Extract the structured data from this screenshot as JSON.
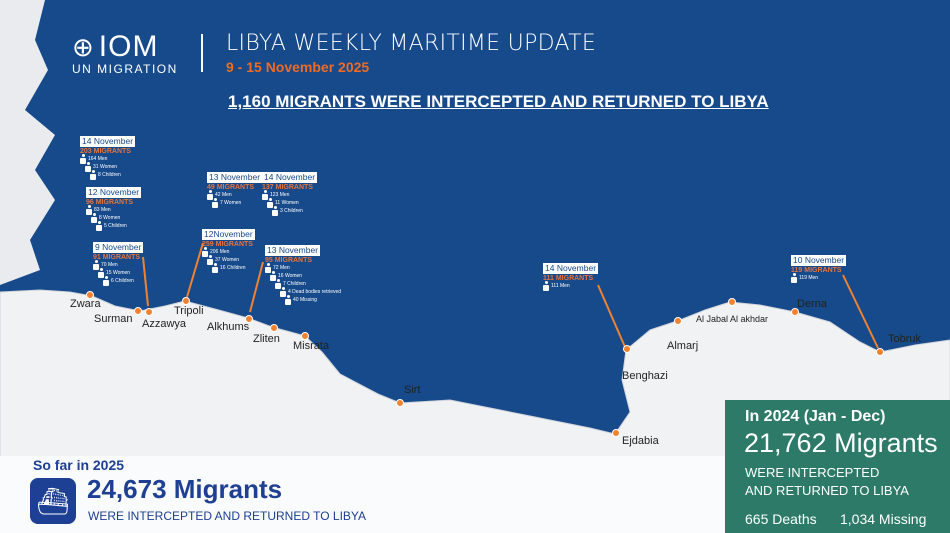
{
  "header": {
    "logo_text": "IOM",
    "logo_sub": "UN MIGRATION",
    "title": "LIBYA WEEKLY MARITIME UPDATE",
    "dates": "9 - 15 November 2025",
    "headline": "1,160 MIGRANTS WERE INTERCEPTED AND RETURNED TO LIBYA"
  },
  "colors": {
    "sea": "#174a8b",
    "land": "#f1f2f4",
    "accent": "#f26a21",
    "green_panel": "#2e7a68",
    "dark_blue": "#1d3f94"
  },
  "cards": [
    {
      "date": "14 November",
      "count": "203 MIGRANTS",
      "rows": [
        "164 Men",
        "31 Women",
        "8 Children"
      ]
    },
    {
      "date": "12 November",
      "count": "96 MIGRANTS",
      "rows": [
        "83 Men",
        "8 Women",
        "5 Children"
      ]
    },
    {
      "date": "9 November",
      "count": "91 MIGRANTS",
      "rows": [
        "70 Men",
        "15 Women",
        "6 Children"
      ]
    },
    {
      "date": "13 November",
      "count": "49 MIGRANTS",
      "rows": [
        "42 Men",
        "7 Women"
      ]
    },
    {
      "date": "14 November",
      "count": "137 MIGRANTS",
      "rows": [
        "123 Men",
        "11 Women",
        "3 Children"
      ]
    },
    {
      "date": "12November",
      "count": "259 MIGRANTS",
      "rows": [
        "206 Men",
        "37 Women",
        "16 Children"
      ]
    },
    {
      "date": "13 November",
      "count": "95 MIGRANTS",
      "rows": [
        "72 Men",
        "16 Women",
        "7 Children",
        "4 Dead bodies retrieved",
        "40 Missing"
      ]
    },
    {
      "date": "14 November",
      "count": "111 MIGRANTS",
      "rows": [
        "111 Men"
      ]
    },
    {
      "date": "10 November",
      "count": "119 MIGRANTS",
      "rows": [
        "119 Men"
      ]
    }
  ],
  "towns": [
    "Zwara",
    "Surman",
    "Azzawya",
    "Tripoli",
    "Alkhums",
    "Zliten",
    "Misrata",
    "Sirt",
    "Benghazi",
    "Ejdabia",
    "Almarj",
    "Al Jabal Al akhdar",
    "Derna",
    "Tobruk"
  ],
  "so_far": {
    "label": "So far in 2025",
    "value": "24,673 Migrants",
    "sub": "WERE INTERCEPTED AND RETURNED TO LIBYA",
    "icon": "boat-icon"
  },
  "year_2024": {
    "label": "In 2024 (Jan - Dec)",
    "value": "21,762 Migrants",
    "sub1": "WERE INTERCEPTED",
    "sub2": "AND RETURNED TO LIBYA",
    "deaths": "665 Deaths",
    "missing": "1,034 Missing"
  }
}
